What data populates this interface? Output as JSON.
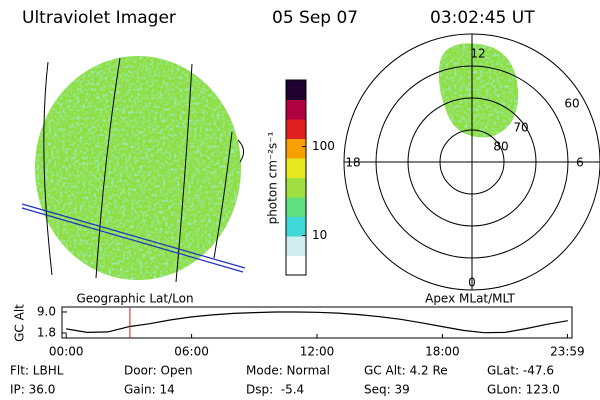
{
  "header": {
    "title": "Ultraviolet Imager",
    "date": "05 Sep 07",
    "time": "03:02:45 UT"
  },
  "panels": {
    "left_label": "Geographic Lat/Lon",
    "right_label": "Apex MLat/MLT",
    "mlt_labels": {
      "top": "12",
      "right": "6",
      "bottom": "0",
      "left": "18"
    },
    "mlat_labels": [
      "60",
      "70",
      "80"
    ]
  },
  "chart_data": [
    {
      "type": "colorbar",
      "label": "photon cm⁻²s⁻¹",
      "log_scale": true,
      "ylim": [
        3.6,
        560
      ],
      "yticks": [
        10,
        100
      ],
      "colors": [
        "#ffffff",
        "#d0eef0",
        "#40d8d8",
        "#60e080",
        "#a0e040",
        "#e8e820",
        "#f8a000",
        "#e02020",
        "#b00040",
        "#200030"
      ]
    },
    {
      "type": "line",
      "y_label": "GC Alt",
      "color": "#000000",
      "marker_color": "#d02020",
      "marker_x": 3.05,
      "x": [
        0,
        1,
        2,
        3,
        4,
        5,
        6,
        7,
        8,
        9,
        10,
        11,
        12,
        13,
        14,
        15,
        16,
        17,
        18,
        19,
        20,
        21,
        22,
        23,
        24
      ],
      "values": [
        3.2,
        2.0,
        2.2,
        4.0,
        5.0,
        6.3,
        7.3,
        8.0,
        8.5,
        8.8,
        9.0,
        9.0,
        8.9,
        8.6,
        8.1,
        7.4,
        6.5,
        5.3,
        4.0,
        2.7,
        1.9,
        2.0,
        3.3,
        4.8,
        6.0
      ],
      "xlim": [
        -0.2,
        24.2
      ],
      "ylim": [
        0.1,
        10.7
      ],
      "xticks": [
        {
          "value": 0,
          "label": "00:00"
        },
        {
          "value": 6,
          "label": "06:00"
        },
        {
          "value": 12,
          "label": "12:00"
        },
        {
          "value": 18,
          "label": "18:00"
        },
        {
          "value": 23.98,
          "label": "23:59"
        }
      ],
      "yticks": [
        1.8,
        {
          "value": 9,
          "label": "9.0"
        }
      ]
    }
  ],
  "info": [
    [
      "Flt: LBHL",
      "Door: Open",
      "Mode: Normal",
      "GC Alt: 4.2 Re",
      "GLat: -47.6"
    ],
    [
      "IP: 36.0",
      "Gain: 14",
      "Dsp:  -5.4",
      "Seq: 39",
      "GLon: 123.0"
    ]
  ]
}
